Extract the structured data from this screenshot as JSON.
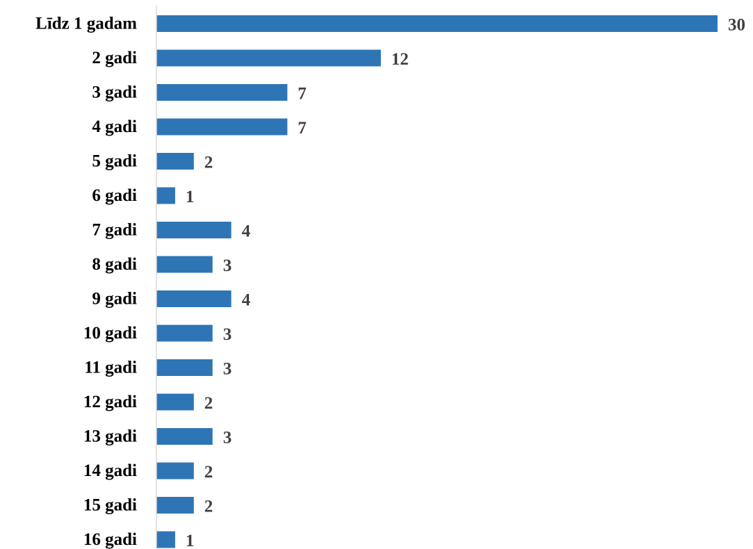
{
  "chart_data": {
    "type": "bar",
    "orientation": "horizontal",
    "categories": [
      "Līdz 1 gadam",
      "2 gadi",
      "3 gadi",
      "4 gadi",
      "5 gadi",
      "6 gadi",
      "7 gadi",
      "8 gadi",
      "9 gadi",
      "10 gadi",
      "11 gadi",
      "12 gadi",
      "13 gadi",
      "14 gadi",
      "15 gadi",
      "16 gadi"
    ],
    "values": [
      30,
      12,
      7,
      7,
      2,
      1,
      4,
      3,
      4,
      3,
      3,
      2,
      3,
      2,
      2,
      1
    ],
    "data_labels": [
      "30",
      "12",
      "7",
      "7",
      "2",
      "1",
      "4",
      "3",
      "4",
      "3",
      "3",
      "2",
      "3",
      "2",
      "2",
      "1"
    ],
    "xlim": [
      0,
      30
    ],
    "grid": false,
    "legend": "none",
    "bar_color": "#2e75b6"
  }
}
